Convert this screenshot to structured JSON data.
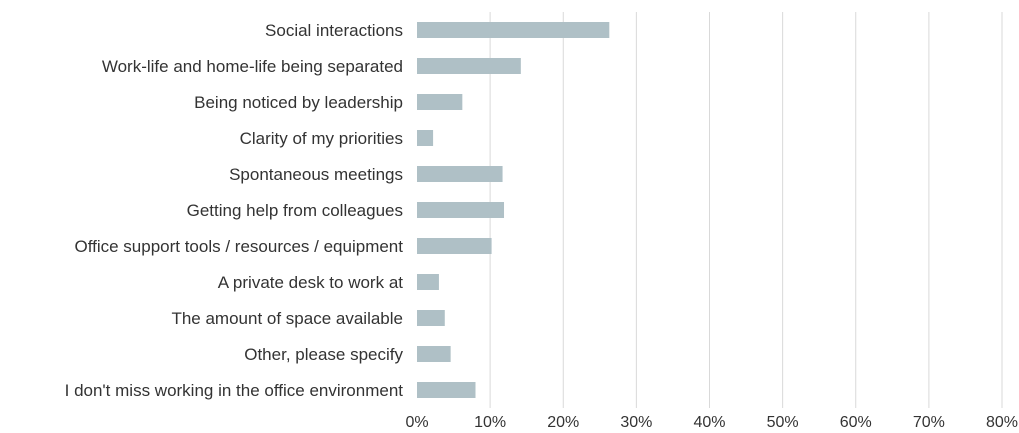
{
  "chart_data": {
    "type": "bar",
    "orientation": "horizontal",
    "categories": [
      "Social interactions",
      "Work-life and home-life being separated",
      "Being noticed by leadership",
      "Clarity of my priorities",
      "Spontaneous meetings",
      "Getting help from colleagues",
      "Office support tools / resources / equipment",
      "A private desk to work at",
      "The amount of space available",
      "Other, please specify",
      "I don't miss working in the office environment"
    ],
    "values": [
      26.3,
      14.2,
      6.2,
      2.2,
      11.7,
      11.9,
      10.2,
      3.0,
      3.8,
      4.6,
      8.0
    ],
    "xlim": [
      0,
      80
    ],
    "xticks": [
      0,
      10,
      20,
      30,
      40,
      50,
      60,
      70,
      80
    ],
    "xtick_labels": [
      "0%",
      "10%",
      "20%",
      "30%",
      "40%",
      "50%",
      "60%",
      "70%",
      "80%"
    ],
    "title": "",
    "xlabel": "",
    "ylabel": "",
    "grid": "vertical",
    "legend": "none",
    "bar_color": "#afc0c6"
  }
}
